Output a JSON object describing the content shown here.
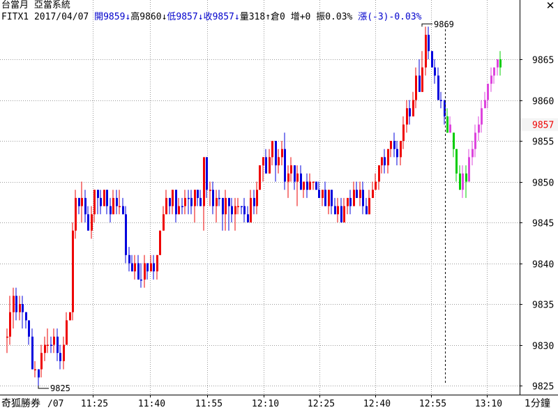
{
  "header": {
    "title": "台當月 亞當系統",
    "symbol": "FITX1",
    "date": "2017/04/07",
    "open_label": "開",
    "open_value": "9859",
    "high_label": "高",
    "high_value": "9860",
    "low_label": "低",
    "low_value": "9857",
    "close_label": "收",
    "close_value": "9857",
    "volume_label": "量",
    "volume_value": "318",
    "oi_label": "倉",
    "oi_value": "0",
    "oi_change_label": "增",
    "oi_change_value": "+0",
    "amplitude_label": "振",
    "amplitude_value": "0.03%",
    "change_label": "漲",
    "change_value": "(-3)-0.03%",
    "arrow_down": "↓",
    "arrow_up": "↑"
  },
  "close_button": "✕",
  "footer": {
    "brand": "奇狐勝券",
    "date_label": "/07",
    "period": "1分鐘"
  },
  "chart_data": {
    "type": "candlestick",
    "ylim": [
      9824.5,
      9870
    ],
    "yticks": [
      9825,
      9830,
      9835,
      9840,
      9845,
      9850,
      9855,
      9860,
      9865
    ],
    "xticks": [
      "11:25",
      "11:40",
      "11:55",
      "12:10",
      "12:25",
      "12:40",
      "12:55",
      "13:10"
    ],
    "current_price": "9857",
    "max_label": "9869",
    "min_label": "9825",
    "colors": {
      "up": "#ee0000",
      "down": "#0000dd",
      "ext_up": "#dd44dd",
      "ext_down": "#00cc00",
      "current": "#ee0000"
    },
    "candles": [
      [
        9831,
        9831,
        9829,
        9832,
        "u"
      ],
      [
        9831,
        9834,
        9830,
        9836,
        "u"
      ],
      [
        9834,
        9836,
        9832,
        9837,
        "u"
      ],
      [
        9836,
        9834,
        9833,
        9837,
        "d"
      ],
      [
        9834,
        9835,
        9833,
        9836,
        "u"
      ],
      [
        9835,
        9834,
        9832,
        9836,
        "d"
      ],
      [
        9834,
        9833,
        9832,
        9834,
        "d"
      ],
      [
        9833,
        9831,
        9830,
        9833,
        "d"
      ],
      [
        9831,
        9827,
        9827,
        9832,
        "d"
      ],
      [
        9827,
        9827,
        9826,
        9828,
        "u"
      ],
      [
        9827,
        9826,
        9825,
        9827,
        "d"
      ],
      [
        9827,
        9829,
        9826,
        9830,
        "u"
      ],
      [
        9829,
        9830,
        9828,
        9831,
        "u"
      ],
      [
        9830,
        9830,
        9829,
        9832,
        "u"
      ],
      [
        9830,
        9830,
        9829,
        9831,
        "d"
      ],
      [
        9830,
        9831,
        9829,
        9832,
        "u"
      ],
      [
        9831,
        9829,
        9828,
        9832,
        "d"
      ],
      [
        9829,
        9828,
        9827,
        9830,
        "d"
      ],
      [
        9828,
        9830,
        9827,
        9831,
        "u"
      ],
      [
        9830,
        9833,
        9830,
        9834,
        "u"
      ],
      [
        9833,
        9834,
        9833,
        9834,
        "u"
      ],
      [
        9834,
        9844,
        9833,
        9845,
        "u"
      ],
      [
        9844,
        9848,
        9843,
        9849,
        "u"
      ],
      [
        9848,
        9847,
        9846,
        9848,
        "d"
      ],
      [
        9847,
        9848,
        9845,
        9850,
        "u"
      ],
      [
        9848,
        9846,
        9845,
        9849,
        "d"
      ],
      [
        9846,
        9844,
        9844,
        9847,
        "d"
      ],
      [
        9844,
        9846,
        9843,
        9847,
        "u"
      ],
      [
        9846,
        9849,
        9845,
        9849,
        "u"
      ],
      [
        9849,
        9848,
        9846,
        9849,
        "d"
      ],
      [
        9848,
        9847,
        9846,
        9849,
        "d"
      ],
      [
        9847,
        9849,
        9847,
        9849,
        "u"
      ],
      [
        9849,
        9847,
        9846,
        9849,
        "d"
      ],
      [
        9847,
        9846,
        9845,
        9848,
        "d"
      ],
      [
        9846,
        9848,
        9846,
        9849,
        "u"
      ],
      [
        9848,
        9847,
        9846,
        9849,
        "d"
      ],
      [
        9847,
        9847,
        9846,
        9849,
        "u"
      ],
      [
        9847,
        9846,
        9846,
        9848,
        "d"
      ],
      [
        9846,
        9841,
        9840,
        9847,
        "d"
      ],
      [
        9841,
        9840,
        9839,
        9842,
        "d"
      ],
      [
        9840,
        9839,
        9839,
        9841,
        "d"
      ],
      [
        9839,
        9840,
        9838,
        9841,
        "u"
      ],
      [
        9840,
        9838,
        9838,
        9841,
        "d"
      ],
      [
        9838,
        9838,
        9837,
        9840,
        "d"
      ],
      [
        9838,
        9840,
        9837,
        9841,
        "u"
      ],
      [
        9840,
        9839,
        9838,
        9840,
        "d"
      ],
      [
        9839,
        9840,
        9839,
        9841,
        "u"
      ],
      [
        9840,
        9839,
        9838,
        9841,
        "d"
      ],
      [
        9839,
        9841,
        9838,
        9841,
        "u"
      ],
      [
        9841,
        9844,
        9841,
        9844,
        "u"
      ],
      [
        9844,
        9846,
        9844,
        9847,
        "u"
      ],
      [
        9846,
        9848,
        9846,
        9849,
        "u"
      ],
      [
        9848,
        9847,
        9846,
        9848,
        "d"
      ],
      [
        9847,
        9849,
        9846,
        9849,
        "u"
      ],
      [
        9849,
        9846,
        9845,
        9849,
        "d"
      ],
      [
        9846,
        9847,
        9846,
        9848,
        "u"
      ],
      [
        9847,
        9847,
        9846,
        9848,
        "d"
      ],
      [
        9847,
        9848,
        9846,
        9849,
        "u"
      ],
      [
        9848,
        9848,
        9846,
        9849,
        "d"
      ],
      [
        9848,
        9847,
        9846,
        9849,
        "d"
      ],
      [
        9847,
        9849,
        9845,
        9849,
        "u"
      ],
      [
        9849,
        9848,
        9847,
        9849,
        "d"
      ],
      [
        9848,
        9847,
        9847,
        9849,
        "d"
      ],
      [
        9847,
        9853,
        9844,
        9853,
        "u"
      ],
      [
        9853,
        9849,
        9848,
        9853,
        "d"
      ],
      [
        9849,
        9849,
        9847,
        9850,
        "u"
      ],
      [
        9849,
        9847,
        9846,
        9850,
        "d"
      ],
      [
        9847,
        9848,
        9845,
        9849,
        "u"
      ],
      [
        9848,
        9848,
        9847,
        9849,
        "d"
      ],
      [
        9848,
        9846,
        9844,
        9848,
        "d"
      ],
      [
        9846,
        9848,
        9844,
        9849,
        "u"
      ],
      [
        9848,
        9847,
        9844,
        9848,
        "d"
      ],
      [
        9847,
        9846,
        9845,
        9848,
        "d"
      ],
      [
        9846,
        9847,
        9844,
        9848,
        "u"
      ],
      [
        9847,
        9847,
        9846,
        9848,
        "u"
      ],
      [
        9847,
        9847,
        9846,
        9847,
        "d"
      ],
      [
        9847,
        9846,
        9845,
        9848,
        "d"
      ],
      [
        9846,
        9845,
        9845,
        9847,
        "d"
      ],
      [
        9845,
        9848,
        9845,
        9849,
        "u"
      ],
      [
        9848,
        9847,
        9846,
        9849,
        "d"
      ],
      [
        9847,
        9849,
        9846,
        9850,
        "u"
      ],
      [
        9849,
        9852,
        9849,
        9852,
        "u"
      ],
      [
        9852,
        9853,
        9850,
        9853,
        "u"
      ],
      [
        9853,
        9851,
        9851,
        9854,
        "d"
      ],
      [
        9851,
        9853,
        9851,
        9854,
        "u"
      ],
      [
        9853,
        9855,
        9852,
        9855,
        "u"
      ],
      [
        9855,
        9852,
        9850,
        9855,
        "d"
      ],
      [
        9852,
        9853,
        9851,
        9854,
        "u"
      ],
      [
        9853,
        9854,
        9852,
        9855,
        "u"
      ],
      [
        9854,
        9850,
        9849,
        9856,
        "d"
      ],
      [
        9850,
        9851,
        9848,
        9852,
        "u"
      ],
      [
        9851,
        9852,
        9850,
        9853,
        "u"
      ],
      [
        9852,
        9850,
        9849,
        9852,
        "d"
      ],
      [
        9850,
        9851,
        9847,
        9852,
        "u"
      ],
      [
        9851,
        9849,
        9849,
        9852,
        "d"
      ],
      [
        9849,
        9850,
        9848,
        9850,
        "u"
      ],
      [
        9850,
        9849,
        9848,
        9851,
        "d"
      ],
      [
        9849,
        9850,
        9849,
        9851,
        "u"
      ],
      [
        9850,
        9850,
        9849,
        9850,
        "u"
      ],
      [
        9850,
        9849,
        9849,
        9850,
        "d"
      ],
      [
        9849,
        9848,
        9848,
        9850,
        "d"
      ],
      [
        9848,
        9849,
        9847,
        9849,
        "u"
      ],
      [
        9849,
        9847,
        9847,
        9850,
        "d"
      ],
      [
        9847,
        9849,
        9846,
        9849,
        "u"
      ],
      [
        9849,
        9847,
        9846,
        9849,
        "d"
      ],
      [
        9847,
        9846,
        9846,
        9848,
        "d"
      ],
      [
        9846,
        9847,
        9845,
        9848,
        "u"
      ],
      [
        9847,
        9845,
        9845,
        9848,
        "d"
      ],
      [
        9845,
        9847,
        9845,
        9848,
        "u"
      ],
      [
        9847,
        9848,
        9846,
        9848,
        "u"
      ],
      [
        9848,
        9847,
        9846,
        9849,
        "d"
      ],
      [
        9847,
        9849,
        9847,
        9850,
        "u"
      ],
      [
        9849,
        9848,
        9848,
        9850,
        "d"
      ],
      [
        9848,
        9849,
        9847,
        9850,
        "u"
      ],
      [
        9849,
        9847,
        9846,
        9850,
        "d"
      ],
      [
        9847,
        9846,
        9846,
        9848,
        "d"
      ],
      [
        9846,
        9848,
        9846,
        9849,
        "u"
      ],
      [
        9848,
        9849,
        9848,
        9850,
        "u"
      ],
      [
        9849,
        9850,
        9849,
        9851,
        "u"
      ],
      [
        9850,
        9852,
        9849,
        9852,
        "u"
      ],
      [
        9852,
        9853,
        9851,
        9853,
        "u"
      ],
      [
        9853,
        9852,
        9851,
        9854,
        "d"
      ],
      [
        9852,
        9854,
        9851,
        9854,
        "u"
      ],
      [
        9854,
        9855,
        9853,
        9855,
        "u"
      ],
      [
        9855,
        9854,
        9853,
        9856,
        "d"
      ],
      [
        9854,
        9853,
        9852,
        9855,
        "d"
      ],
      [
        9853,
        9855,
        9852,
        9855,
        "u"
      ],
      [
        9855,
        9857,
        9854,
        9858,
        "u"
      ],
      [
        9857,
        9859,
        9856,
        9860,
        "u"
      ],
      [
        9859,
        9858,
        9857,
        9860,
        "d"
      ],
      [
        9858,
        9860,
        9858,
        9861,
        "u"
      ],
      [
        9860,
        9863,
        9859,
        9864,
        "u"
      ],
      [
        9863,
        9861,
        9861,
        9865,
        "d"
      ],
      [
        9861,
        9864,
        9861,
        9866,
        "u"
      ],
      [
        9864,
        9868,
        9863,
        9869,
        "u"
      ],
      [
        9868,
        9866,
        9865,
        9869,
        "d"
      ],
      [
        9866,
        9864,
        9864,
        9866,
        "d"
      ],
      [
        9864,
        9863,
        9862,
        9865,
        "d"
      ],
      [
        9863,
        9860,
        9860,
        9864,
        "d"
      ],
      [
        9860,
        9860,
        9859,
        9861,
        "d"
      ],
      [
        9860,
        9858,
        9857,
        9860,
        "d"
      ]
    ],
    "ext_candles": [
      [
        9858,
        9856,
        9856,
        9859,
        "d"
      ],
      [
        9856,
        9857,
        9856,
        9858,
        "u"
      ],
      [
        9856,
        9854,
        9853,
        9856,
        "d"
      ],
      [
        9854,
        9851,
        9850,
        9854,
        "d"
      ],
      [
        9851,
        9849,
        9849,
        9852,
        "d"
      ],
      [
        9849,
        9851,
        9848,
        9852,
        "u"
      ],
      [
        9851,
        9850,
        9848,
        9852,
        "d"
      ],
      [
        9850,
        9853,
        9850,
        9854,
        "u"
      ],
      [
        9853,
        9854,
        9852,
        9855,
        "u"
      ],
      [
        9854,
        9856,
        9853,
        9857,
        "u"
      ],
      [
        9856,
        9857,
        9855,
        9858,
        "u"
      ],
      [
        9857,
        9859,
        9856,
        9860,
        "u"
      ],
      [
        9859,
        9860,
        9859,
        9861,
        "u"
      ],
      [
        9860,
        9862,
        9859,
        9862,
        "u"
      ],
      [
        9862,
        9863,
        9861,
        9864,
        "u"
      ],
      [
        9863,
        9864,
        9862,
        9864,
        "u"
      ],
      [
        9864,
        9865,
        9863,
        9865,
        "u"
      ],
      [
        9865,
        9864,
        9863,
        9866,
        "d"
      ]
    ]
  }
}
